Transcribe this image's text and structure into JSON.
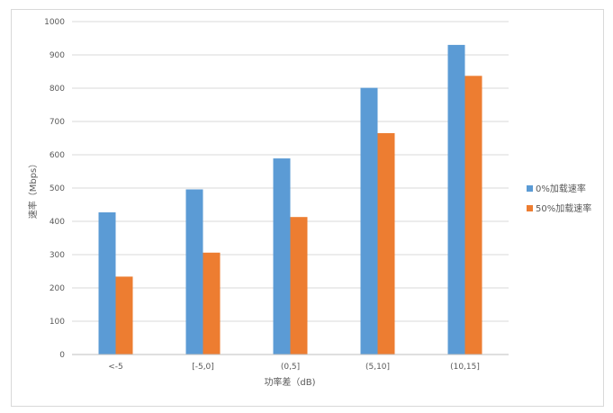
{
  "chart_data": {
    "type": "bar",
    "title": "",
    "xlabel": "功率差（dB)",
    "ylabel": "速率（Mbps）",
    "ylim": [
      0,
      1000
    ],
    "yticks": [
      0,
      100,
      200,
      300,
      400,
      500,
      600,
      700,
      800,
      900,
      1000
    ],
    "grid": true,
    "legend_position": "right",
    "categories": [
      "<-5",
      "[-5,0]",
      "(0,5]",
      "(5,10]",
      "(10,15]"
    ],
    "series": [
      {
        "name": "0%加载速率",
        "color": "#5b9bd5",
        "values": [
          427,
          496,
          589,
          801,
          930
        ]
      },
      {
        "name": "50%加载速率",
        "color": "#ed7d31",
        "values": [
          234,
          306,
          413,
          665,
          837
        ]
      }
    ]
  }
}
